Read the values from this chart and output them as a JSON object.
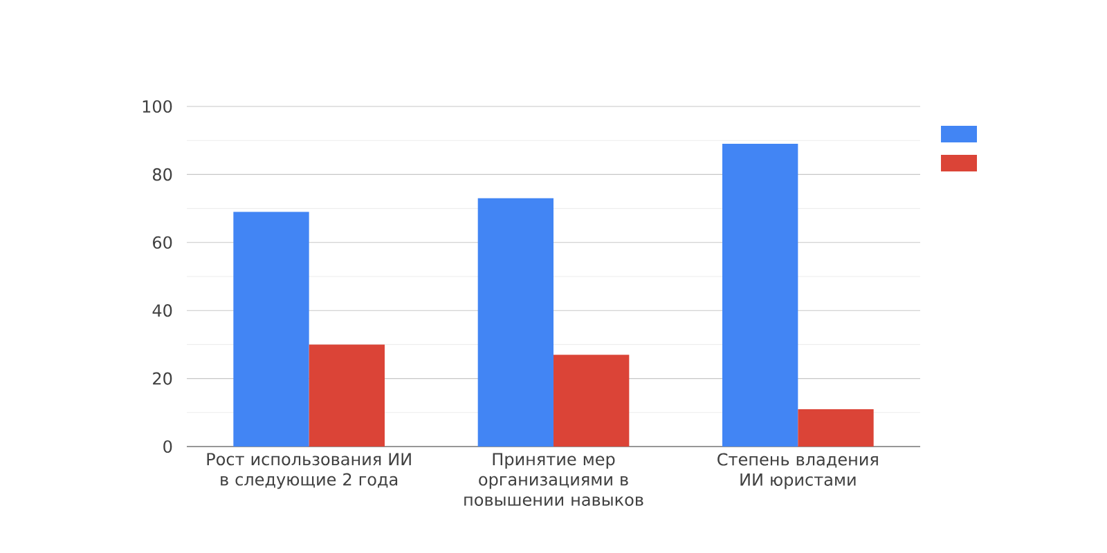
{
  "chart_data": {
    "type": "bar",
    "categories": [
      "Рост использования ИИ в следующие 2 года",
      "Принятие мер организациями в повышении навыков",
      "Степень владения ИИ юристами"
    ],
    "series": [
      {
        "color": "#4285f4",
        "values": [
          69,
          73,
          89
        ]
      },
      {
        "color": "#db4437",
        "values": [
          30,
          27,
          11
        ]
      }
    ],
    "ylim": [
      0,
      100
    ],
    "yticks": [
      0,
      20,
      40,
      60,
      80,
      100
    ],
    "grid": "y"
  }
}
